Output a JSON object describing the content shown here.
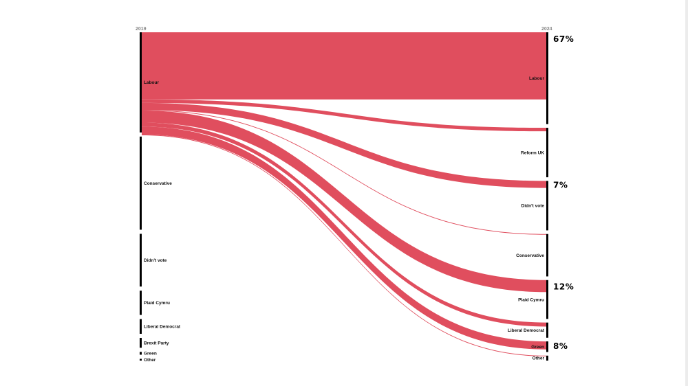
{
  "chart_data": {
    "type": "sankey",
    "left_year": "2019",
    "right_year": "2024",
    "flow_color": "#e04e5e",
    "bar_color": "#000000",
    "left_nodes": [
      {
        "label": "Labour",
        "share": 28.5
      },
      {
        "label": "Conservative",
        "share": 26.5
      },
      {
        "label": "Didn't vote",
        "share": 15.0
      },
      {
        "label": "Plaid Cymru",
        "share": 6.9
      },
      {
        "label": "Liberal Democrat",
        "share": 4.2
      },
      {
        "label": "Brexit Party",
        "share": 2.8
      },
      {
        "label": "Green",
        "share": 0.8
      },
      {
        "label": "Other",
        "share": 0.5
      }
    ],
    "right_nodes": [
      {
        "label": "Labour",
        "share": 26.0
      },
      {
        "label": "Reform UK",
        "share": 14.0
      },
      {
        "label": "Didn't vote",
        "share": 14.0
      },
      {
        "label": "Conservative",
        "share": 12.0
      },
      {
        "label": "Plaid Cymru",
        "share": 11.0
      },
      {
        "label": "Liberal Democrat",
        "share": 4.3
      },
      {
        "label": "Green",
        "share": 3.0
      },
      {
        "label": "Other",
        "share": 1.4
      }
    ],
    "flows": [
      {
        "from": "Labour",
        "to": "Labour",
        "share_of_source": 67,
        "label": "67%"
      },
      {
        "from": "Labour",
        "to": "Reform UK",
        "share_of_source": 3.5,
        "label": ""
      },
      {
        "from": "Labour",
        "to": "Didn't vote",
        "share_of_source": 7,
        "label": "7%"
      },
      {
        "from": "Labour",
        "to": "Conservative",
        "share_of_source": 0.4,
        "label": ""
      },
      {
        "from": "Labour",
        "to": "Plaid Cymru",
        "share_of_source": 12,
        "label": "12%"
      },
      {
        "from": "Labour",
        "to": "Liberal Democrat",
        "share_of_source": 4,
        "label": ""
      },
      {
        "from": "Labour",
        "to": "Green",
        "share_of_source": 8,
        "label": "8%"
      },
      {
        "from": "Labour",
        "to": "Other",
        "share_of_source": 0.4,
        "label": ""
      }
    ]
  }
}
